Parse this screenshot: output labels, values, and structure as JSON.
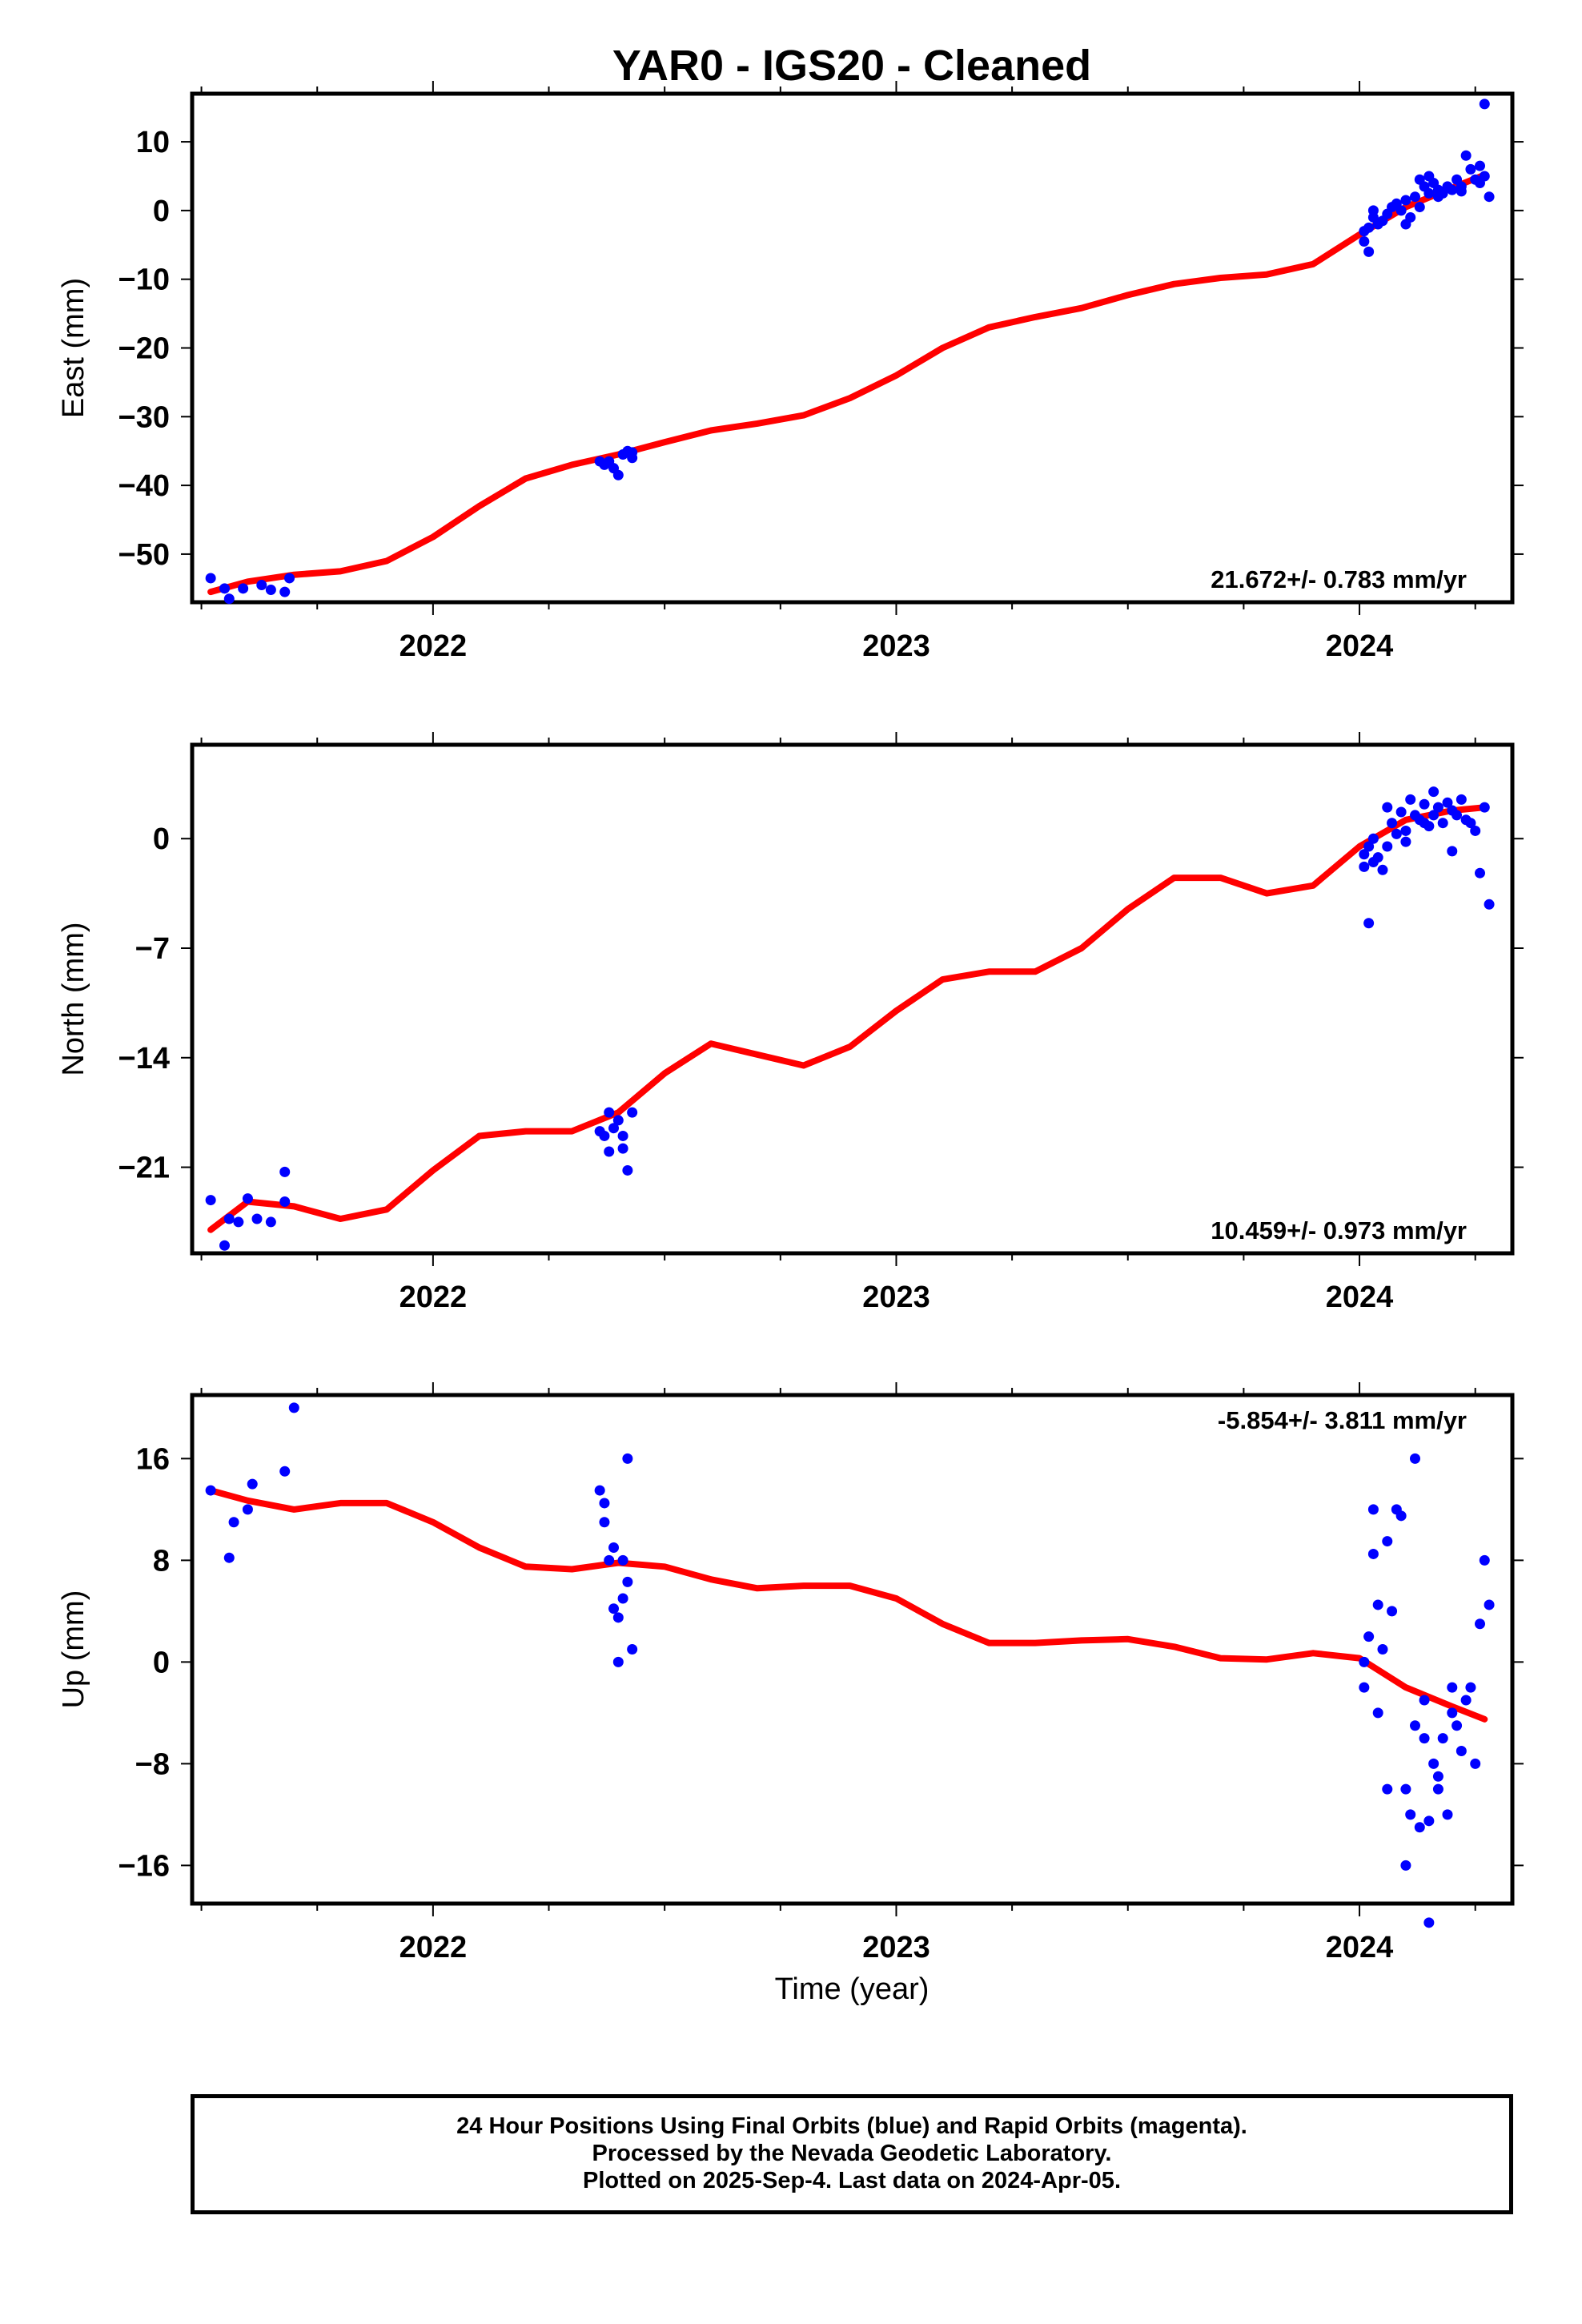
{
  "chart_data": {
    "type": "scatter",
    "title": "YAR0  - IGS20 - Cleaned",
    "xlabel": "Time (year)",
    "x_range": [
      2021.48,
      2024.33
    ],
    "x_major_ticks": [
      2022,
      2023,
      2024
    ],
    "x_tick_labels": [
      "2022",
      "2023",
      "2024"
    ],
    "panels": [
      {
        "name": "east",
        "ylabel": "East (mm)",
        "ylim": [
          -57,
          17
        ],
        "yticks": [
          10,
          0,
          -10,
          -20,
          -30,
          -40,
          -50
        ],
        "ytick_labels": [
          "10",
          "0",
          "−10",
          "−20",
          "−30",
          "−40",
          "−50"
        ],
        "rate_label": "21.672+/- 0.783 mm/yr",
        "rate_position": "bottom-right",
        "fit": {
          "x": [
            2021.52,
            2021.6,
            2021.7,
            2021.8,
            2021.9,
            2022.0,
            2022.1,
            2022.2,
            2022.3,
            2022.4,
            2022.5,
            2022.6,
            2022.7,
            2022.8,
            2022.9,
            2023.0,
            2023.1,
            2023.2,
            2023.3,
            2023.4,
            2023.5,
            2023.6,
            2023.7,
            2023.8,
            2023.9,
            2024.0,
            2024.1,
            2024.2,
            2024.27
          ],
          "y": [
            -55.5,
            -54.0,
            -53.0,
            -52.5,
            -51.0,
            -47.5,
            -43.0,
            -39.0,
            -37.0,
            -35.5,
            -33.7,
            -32.0,
            -31.0,
            -29.8,
            -27.3,
            -24.0,
            -20.0,
            -17.0,
            -15.5,
            -14.2,
            -12.3,
            -10.7,
            -9.8,
            -9.3,
            -7.8,
            -3.5,
            0.5,
            3.3,
            5.2
          ]
        },
        "points": {
          "x": [
            2021.52,
            2021.55,
            2021.56,
            2021.59,
            2021.63,
            2021.65,
            2021.68,
            2021.69,
            2022.36,
            2022.37,
            2022.38,
            2022.39,
            2022.4,
            2022.41,
            2022.42,
            2022.43,
            2022.43,
            2024.01,
            2024.01,
            2024.02,
            2024.02,
            2024.03,
            2024.03,
            2024.04,
            2024.05,
            2024.06,
            2024.07,
            2024.08,
            2024.09,
            2024.1,
            2024.1,
            2024.11,
            2024.12,
            2024.13,
            2024.13,
            2024.14,
            2024.15,
            2024.15,
            2024.16,
            2024.17,
            2024.17,
            2024.18,
            2024.19,
            2024.2,
            2024.21,
            2024.22,
            2024.22,
            2024.23,
            2024.24,
            2024.25,
            2024.26,
            2024.26,
            2024.27,
            2024.27,
            2024.28
          ],
          "y": [
            -53.5,
            -55.0,
            -56.5,
            -55.0,
            -54.5,
            -55.2,
            -55.5,
            -53.5,
            -36.5,
            -37.0,
            -36.5,
            -37.5,
            -38.5,
            -35.5,
            -35.0,
            -36.0,
            -35.2,
            -3.0,
            -4.5,
            -6.0,
            -2.5,
            -1.0,
            0.0,
            -2.0,
            -1.5,
            -0.5,
            0.5,
            1.0,
            0.0,
            1.5,
            -2.0,
            -1.0,
            2.0,
            0.5,
            4.5,
            3.5,
            2.5,
            5.0,
            4.0,
            3.0,
            2.0,
            2.5,
            3.5,
            3.0,
            4.5,
            2.8,
            3.5,
            8.0,
            6.0,
            4.5,
            6.5,
            4.0,
            5.0,
            15.5,
            2.0
          ]
        }
      },
      {
        "name": "north",
        "ylabel": "North (mm)",
        "ylim": [
          -26.5,
          6.0
        ],
        "yticks": [
          0,
          -7,
          -14,
          -21
        ],
        "ytick_labels": [
          "0",
          "−7",
          "−14",
          "−21"
        ],
        "rate_label": "10.459+/- 0.973 mm/yr",
        "rate_position": "bottom-right",
        "fit": {
          "x": [
            2021.52,
            2021.6,
            2021.7,
            2021.8,
            2021.9,
            2022.0,
            2022.1,
            2022.2,
            2022.3,
            2022.4,
            2022.5,
            2022.6,
            2022.7,
            2022.8,
            2022.9,
            2023.0,
            2023.1,
            2023.2,
            2023.3,
            2023.4,
            2023.5,
            2023.6,
            2023.7,
            2023.8,
            2023.9,
            2024.0,
            2024.1,
            2024.2,
            2024.27
          ],
          "y": [
            -25.0,
            -23.2,
            -23.5,
            -24.3,
            -23.7,
            -21.2,
            -19.0,
            -18.7,
            -18.7,
            -17.5,
            -15.0,
            -13.1,
            -13.8,
            -14.5,
            -13.3,
            -11.0,
            -9.0,
            -8.5,
            -8.5,
            -7.0,
            -4.5,
            -2.5,
            -2.5,
            -3.5,
            -3.0,
            -0.5,
            1.2,
            1.8,
            2.0
          ]
        },
        "points": {
          "x": [
            2021.52,
            2021.55,
            2021.56,
            2021.58,
            2021.6,
            2021.62,
            2021.65,
            2021.68,
            2021.68,
            2022.36,
            2022.37,
            2022.38,
            2022.38,
            2022.39,
            2022.4,
            2022.41,
            2022.41,
            2022.42,
            2022.43,
            2024.01,
            2024.01,
            2024.02,
            2024.02,
            2024.03,
            2024.03,
            2024.04,
            2024.05,
            2024.06,
            2024.06,
            2024.07,
            2024.08,
            2024.09,
            2024.1,
            2024.1,
            2024.11,
            2024.12,
            2024.13,
            2024.14,
            2024.14,
            2024.15,
            2024.16,
            2024.16,
            2024.17,
            2024.18,
            2024.19,
            2024.2,
            2024.2,
            2024.21,
            2024.22,
            2024.23,
            2024.24,
            2024.25,
            2024.26,
            2024.27,
            2024.28
          ],
          "y": [
            -23.1,
            -26.0,
            -24.3,
            -24.5,
            -23.0,
            -24.3,
            -24.5,
            -21.3,
            -23.2,
            -18.7,
            -19.0,
            -20.0,
            -17.5,
            -18.5,
            -18.0,
            -19.8,
            -19.0,
            -21.2,
            -17.5,
            -1.0,
            -1.8,
            -5.4,
            -0.5,
            -1.5,
            0.0,
            -1.2,
            -2.0,
            2.0,
            -0.5,
            1.0,
            0.3,
            1.7,
            -0.2,
            0.5,
            2.5,
            1.5,
            1.2,
            1.0,
            2.2,
            0.8,
            3.0,
            1.5,
            2.0,
            1.0,
            2.3,
            1.8,
            -0.8,
            1.5,
            2.5,
            1.2,
            1.0,
            0.5,
            -2.2,
            2.0,
            -4.2
          ]
        }
      },
      {
        "name": "up",
        "ylabel": "Up (mm)",
        "ylim": [
          -19.0,
          21.0
        ],
        "yticks": [
          16,
          8,
          0,
          -8,
          -16
        ],
        "ytick_labels": [
          "16",
          "8",
          "0",
          "−8",
          "−16"
        ],
        "rate_label": "-5.854+/- 3.811 mm/yr",
        "rate_position": "top-right",
        "fit": {
          "x": [
            2021.52,
            2021.6,
            2021.7,
            2021.8,
            2021.9,
            2022.0,
            2022.1,
            2022.2,
            2022.3,
            2022.4,
            2022.5,
            2022.6,
            2022.7,
            2022.8,
            2022.9,
            2023.0,
            2023.1,
            2023.2,
            2023.3,
            2023.4,
            2023.5,
            2023.6,
            2023.7,
            2023.8,
            2023.9,
            2024.0,
            2024.1,
            2024.2,
            2024.27
          ],
          "y": [
            13.5,
            12.7,
            12.0,
            12.5,
            12.5,
            11.0,
            9.0,
            7.5,
            7.3,
            7.8,
            7.5,
            6.5,
            5.8,
            6.0,
            6.0,
            5.0,
            3.0,
            1.5,
            1.5,
            1.7,
            1.8,
            1.2,
            0.3,
            0.2,
            0.7,
            0.3,
            -2.0,
            -3.5,
            -4.5
          ]
        },
        "points": {
          "x": [
            2021.52,
            2021.56,
            2021.57,
            2021.6,
            2021.61,
            2021.68,
            2021.7,
            2022.36,
            2022.37,
            2022.37,
            2022.38,
            2022.39,
            2022.39,
            2022.4,
            2022.4,
            2022.41,
            2022.41,
            2022.42,
            2022.42,
            2022.43,
            2024.01,
            2024.01,
            2024.02,
            2024.03,
            2024.03,
            2024.04,
            2024.04,
            2024.05,
            2024.06,
            2024.06,
            2024.07,
            2024.08,
            2024.09,
            2024.1,
            2024.1,
            2024.11,
            2024.12,
            2024.12,
            2024.13,
            2024.14,
            2024.14,
            2024.15,
            2024.15,
            2024.16,
            2024.17,
            2024.17,
            2024.18,
            2024.19,
            2024.2,
            2024.2,
            2024.21,
            2024.22,
            2024.23,
            2024.24,
            2024.25,
            2024.26,
            2024.27,
            2024.28
          ],
          "y": [
            13.5,
            8.2,
            11.0,
            12.0,
            14.0,
            15.0,
            20.0,
            13.5,
            11.0,
            12.5,
            8.0,
            9.0,
            4.2,
            3.5,
            0.0,
            8.0,
            5.0,
            16.0,
            6.3,
            1.0,
            -2.0,
            0.0,
            2.0,
            8.5,
            12.0,
            4.5,
            -4.0,
            1.0,
            9.5,
            -10.0,
            4.0,
            12.0,
            11.5,
            -16.0,
            -10.0,
            -12.0,
            16.0,
            -5.0,
            -13.0,
            -6.0,
            -3.0,
            -12.5,
            -20.5,
            -8.0,
            -9.0,
            -10.0,
            -6.0,
            -12.0,
            -2.0,
            -4.0,
            -5.0,
            -7.0,
            -3.0,
            -2.0,
            -8.0,
            3.0,
            8.0,
            4.5
          ]
        }
      }
    ]
  },
  "footer": {
    "line1": "24 Hour Positions Using Final Orbits (blue) and Rapid Orbits (magenta).",
    "line2": "Processed by the Nevada Geodetic Laboratory.",
    "line3": "Plotted on 2025-Sep-4. Last data on 2024-Apr-05."
  },
  "colors": {
    "points": "#0000ff",
    "fit": "#ff0000",
    "frame": "#000000"
  }
}
